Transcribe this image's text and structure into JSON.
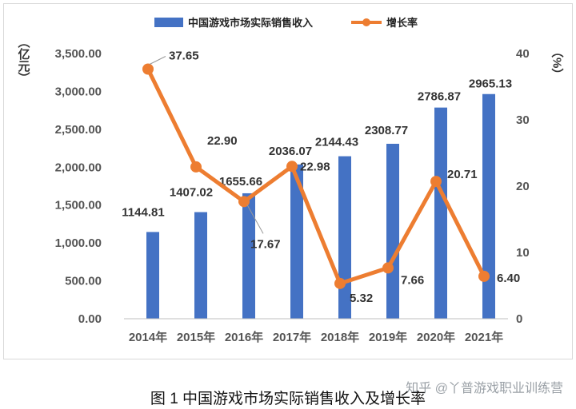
{
  "chart_data": {
    "type": "bar+line",
    "categories": [
      "2014年",
      "2015年",
      "2016年",
      "2017年",
      "2018年",
      "2019年",
      "2020年",
      "2021年"
    ],
    "series": [
      {
        "name": "中国游戏市场实际销售收入",
        "type": "bar",
        "axis": "left",
        "color": "#4472C4",
        "values": [
          1144.81,
          1407.02,
          1655.66,
          2036.07,
          2144.43,
          2308.77,
          2786.87,
          2965.13
        ],
        "labels": [
          "1144.81",
          "1407.02",
          "1655.66",
          "2036.07",
          "2144.43",
          "2308.77",
          "2786.87",
          "2965.13"
        ]
      },
      {
        "name": "增长率",
        "type": "line",
        "axis": "right",
        "color": "#ED7D31",
        "values": [
          37.65,
          22.9,
          17.67,
          22.98,
          5.32,
          7.66,
          20.71,
          6.4
        ],
        "labels": [
          "37.65",
          "22.90",
          "17.67",
          "22.98",
          "5.32",
          "7.66",
          "20.71",
          "6.40"
        ]
      }
    ],
    "y_left": {
      "label": "（亿元）",
      "range": [
        0,
        3500
      ],
      "ticks": [
        "0.00",
        "500.00",
        "1,000.00",
        "1,500.00",
        "2,000.00",
        "2,500.00",
        "3,000.00",
        "3,500.00"
      ]
    },
    "y_right": {
      "label": "（%）",
      "range": [
        0,
        40
      ],
      "ticks": [
        "0",
        "10",
        "20",
        "30",
        "40"
      ]
    },
    "legend": "top",
    "grid": false
  },
  "watermark": "知乎 @丫普游戏职业训练营",
  "caption": "图 1 中国游戏市场实际销售收入及增长率"
}
